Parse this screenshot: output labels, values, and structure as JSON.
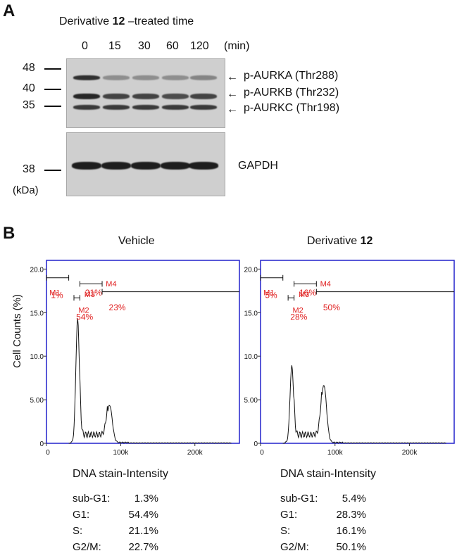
{
  "panelA": {
    "letter": "A",
    "treatment_prefix": "Derivative ",
    "treatment_bold": "12",
    "treatment_suffix": " –treated time",
    "time_points": [
      "0",
      "15",
      "30",
      "60",
      "120"
    ],
    "time_unit": "(min)",
    "mw_markers": [
      "48",
      "40",
      "35",
      "38"
    ],
    "mw_unit": "(kDa)",
    "band_labels": [
      "p-AURKA (Thr288)",
      "p-AURKB (Thr232)",
      "p-AURKC (Thr198)"
    ],
    "loading_label": "GAPDH",
    "band_intensity": {
      "p-AURKA": [
        0.85,
        0.35,
        0.35,
        0.35,
        0.4
      ],
      "p-AURKB": [
        0.9,
        0.75,
        0.75,
        0.7,
        0.75
      ],
      "p-AURKC": [
        0.8,
        0.8,
        0.8,
        0.8,
        0.8
      ],
      "GAPDH": [
        0.95,
        0.95,
        0.95,
        0.95,
        0.95
      ]
    }
  },
  "panelB": {
    "letter": "B",
    "ylabel": "Cell Counts (%)",
    "xlabel": "DNA stain-Intensity",
    "frame_color": "#2222cc",
    "gate_color": "#e02020",
    "yticks": [
      "0",
      "5.00",
      "10.0",
      "15.0",
      "20.0"
    ],
    "xticks": [
      "0",
      "100k",
      "200k"
    ],
    "stat_labels": [
      "sub-G1:",
      "G1:",
      "S:",
      "G2/M:"
    ],
    "plots": [
      {
        "title_prefix": "Vehicle",
        "title_bold": "",
        "gates": [
          {
            "name": "M1",
            "pct": "1%"
          },
          {
            "name": "M2",
            "pct": "54%"
          },
          {
            "name": "M3",
            "pct": "21%"
          },
          {
            "name": "M4",
            "pct": "23%"
          }
        ],
        "stats": [
          "1.3%",
          "54.4%",
          "21.1%",
          "22.7%"
        ],
        "g1_peak": 14.2,
        "g2_peak": 4.3
      },
      {
        "title_prefix": "Derivative ",
        "title_bold": "12",
        "gates": [
          {
            "name": "M1",
            "pct": "5%"
          },
          {
            "name": "M2",
            "pct": "28%"
          },
          {
            "name": "M3",
            "pct": "16%"
          },
          {
            "name": "M4",
            "pct": "50%"
          }
        ],
        "stats": [
          "5.4%",
          "28.3%",
          "16.1%",
          "50.1%"
        ],
        "g1_peak": 8.8,
        "g2_peak": 6.6
      }
    ]
  }
}
